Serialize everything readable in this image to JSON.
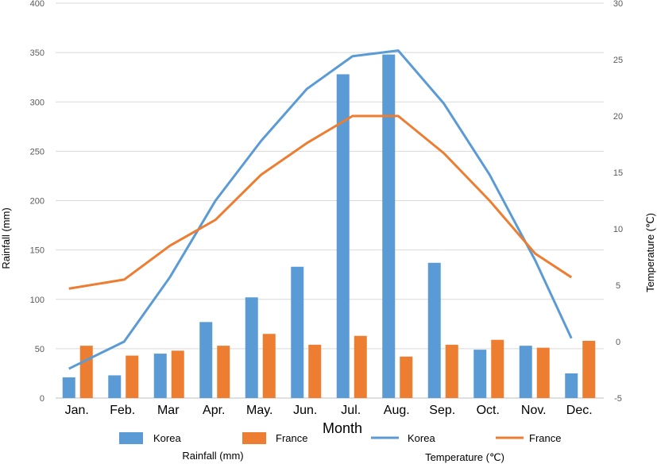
{
  "chart_data": {
    "type": "bar",
    "xlabel": "Month",
    "ylabel": "Rainfall (mm)",
    "y2label": "Temperature (℃)",
    "categories": [
      "Jan.",
      "Feb.",
      "Mar",
      "Apr.",
      "May.",
      "Jun.",
      "Jul.",
      "Aug.",
      "Sep.",
      "Oct.",
      "Nov.",
      "Dec."
    ],
    "ylim": [
      0,
      400
    ],
    "yticks": [
      0,
      50,
      100,
      150,
      200,
      250,
      300,
      350,
      400
    ],
    "y2lim": [
      -5,
      30
    ],
    "y2ticks": [
      -5,
      0,
      5,
      10,
      15,
      20,
      25,
      30
    ],
    "grid": true,
    "bar_series": [
      {
        "name": "Korea",
        "axis": "left",
        "color": "#5b9bd5",
        "values": [
          21,
          23,
          45,
          77,
          102,
          133,
          328,
          348,
          137,
          49,
          53,
          25
        ]
      },
      {
        "name": "France",
        "axis": "left",
        "color": "#ed7d31",
        "values": [
          53,
          43,
          48,
          53,
          65,
          54,
          63,
          42,
          54,
          59,
          51,
          58
        ]
      }
    ],
    "line_series": [
      {
        "name": "Korea",
        "axis": "right",
        "color": "#5b9bd5",
        "values": [
          -2.4,
          0,
          5.7,
          12.5,
          17.8,
          22.4,
          25.3,
          25.8,
          21.1,
          14.8,
          7.2,
          0.3
        ]
      },
      {
        "name": "France",
        "axis": "right",
        "color": "#ed7d31",
        "values": [
          4.7,
          5.5,
          8.5,
          10.8,
          14.8,
          17.6,
          20,
          20,
          16.7,
          12.5,
          7.8,
          5.7
        ]
      }
    ],
    "legend": {
      "position": "bottom",
      "bar_group_label": "Rainfall (mm)",
      "line_group_label": "Temperature (℃)"
    }
  }
}
